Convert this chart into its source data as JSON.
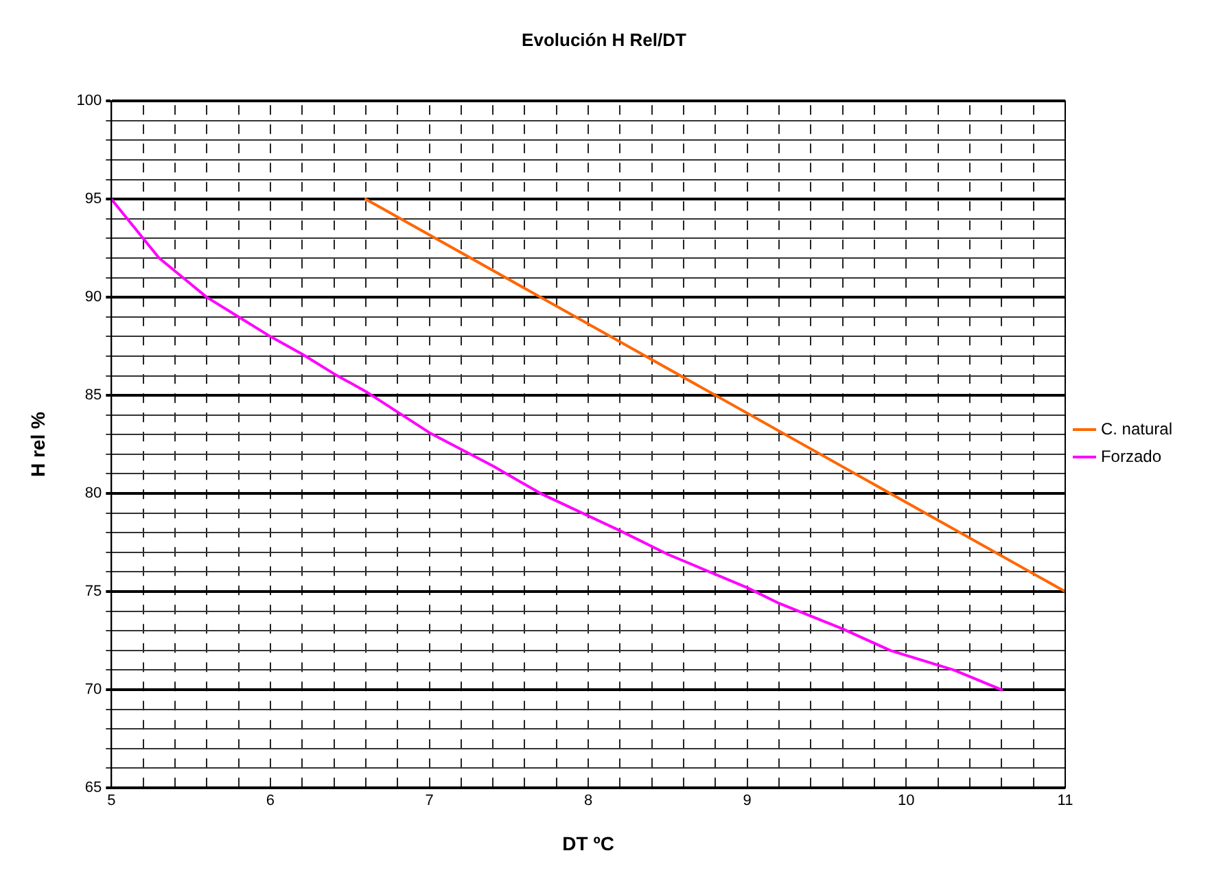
{
  "chart_data": {
    "type": "line",
    "title": "Evolución H Rel/DT",
    "xlabel": "DT ºC",
    "ylabel": "H rel %",
    "xlim": [
      5,
      11
    ],
    "ylim": [
      65,
      100
    ],
    "xticks": [
      5,
      {
        "value": 5.2,
        "label": null
      },
      {
        "value": 5.4,
        "label": null
      },
      {
        "value": 5.6,
        "label": null
      },
      {
        "value": 5.8,
        "label": null
      },
      6,
      {
        "value": 6.2,
        "label": null
      },
      {
        "value": 6.4,
        "label": null
      },
      {
        "value": 6.6,
        "label": null
      },
      {
        "value": 6.8,
        "label": null
      },
      7,
      {
        "value": 7.2,
        "label": null
      },
      {
        "value": 7.4,
        "label": null
      },
      {
        "value": 7.6,
        "label": null
      },
      {
        "value": 7.8,
        "label": null
      },
      8,
      {
        "value": 8.2,
        "label": null
      },
      {
        "value": 8.4,
        "label": null
      },
      {
        "value": 8.6,
        "label": null
      },
      {
        "value": 8.8,
        "label": null
      },
      9,
      {
        "value": 9.2,
        "label": null
      },
      {
        "value": 9.4,
        "label": null
      },
      {
        "value": 9.6,
        "label": null
      },
      {
        "value": 9.8,
        "label": null
      },
      10,
      {
        "value": 10.2,
        "label": null
      },
      {
        "value": 10.4,
        "label": null
      },
      {
        "value": 10.6,
        "label": null
      },
      {
        "value": 10.8,
        "label": null
      },
      11
    ],
    "yticks": [
      65,
      {
        "value": 66,
        "label": null
      },
      {
        "value": 67,
        "label": null
      },
      {
        "value": 68,
        "label": null
      },
      {
        "value": 69,
        "label": null
      },
      70,
      {
        "value": 71,
        "label": null
      },
      {
        "value": 72,
        "label": null
      },
      {
        "value": 73,
        "label": null
      },
      {
        "value": 74,
        "label": null
      },
      75,
      {
        "value": 76,
        "label": null
      },
      {
        "value": 77,
        "label": null
      },
      {
        "value": 78,
        "label": null
      },
      {
        "value": 79,
        "label": null
      },
      80,
      {
        "value": 81,
        "label": null
      },
      {
        "value": 82,
        "label": null
      },
      {
        "value": 83,
        "label": null
      },
      {
        "value": 84,
        "label": null
      },
      85,
      {
        "value": 86,
        "label": null
      },
      {
        "value": 87,
        "label": null
      },
      {
        "value": 88,
        "label": null
      },
      {
        "value": 89,
        "label": null
      },
      90,
      {
        "value": 91,
        "label": null
      },
      {
        "value": 92,
        "label": null
      },
      {
        "value": 93,
        "label": null
      },
      {
        "value": 94,
        "label": null
      },
      95,
      {
        "value": 96,
        "label": null
      },
      {
        "value": 97,
        "label": null
      },
      {
        "value": 98,
        "label": null
      },
      {
        "value": 99,
        "label": null
      },
      100
    ],
    "grid": true,
    "legend": "right",
    "marker": "none",
    "line_style": "solid",
    "series": [
      {
        "name": "C. natural",
        "color": "#ff6600",
        "x": [
          6.6,
          11
        ],
        "values": [
          95,
          75
        ]
      },
      {
        "name": "Forzado",
        "color": "#ff00ff",
        "x": [
          5,
          5.3,
          5.6,
          5.8,
          6,
          6.2,
          6.4,
          6.6,
          7,
          7.4,
          7.7,
          8.2,
          8.5,
          9,
          9.2,
          9.6,
          9.9,
          10.3,
          10.6
        ],
        "values": [
          95,
          92,
          90,
          89,
          88,
          87.1,
          86.1,
          85.2,
          83.1,
          81.4,
          80,
          78.1,
          76.9,
          75.2,
          74.4,
          73.1,
          72,
          71,
          70
        ]
      }
    ]
  }
}
